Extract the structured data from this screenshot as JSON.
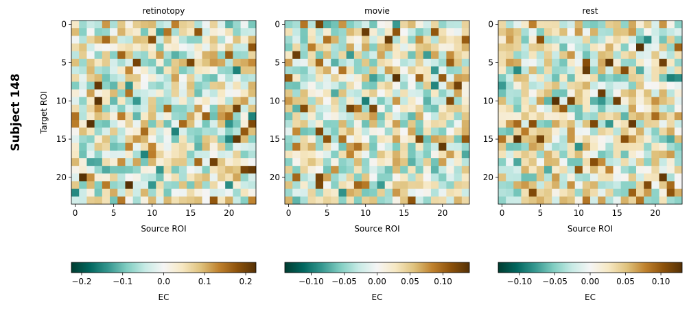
{
  "figure": {
    "suptitle": "Subject 148"
  },
  "chart_data": [
    {
      "type": "heatmap",
      "title": "retinotopy",
      "xlabel": "Source ROI",
      "ylabel": "Target ROI",
      "size": 24,
      "xticks": [
        0,
        5,
        10,
        15,
        20
      ],
      "yticks": [
        0,
        5,
        10,
        15,
        20
      ],
      "colorbar": {
        "label": "EC",
        "range": [
          -0.225,
          0.225
        ],
        "ticks": [
          -0.2,
          -0.1,
          0.0,
          0.1,
          0.2
        ],
        "tick_labels": [
          "−0.2",
          "−0.1",
          "0.0",
          "0.1",
          "0.2"
        ]
      },
      "seed": 148
    },
    {
      "type": "heatmap",
      "title": "movie",
      "xlabel": "Source ROI",
      "ylabel": "",
      "size": 24,
      "xticks": [
        0,
        5,
        10,
        15,
        20
      ],
      "yticks": [
        0,
        5,
        10,
        15,
        20
      ],
      "colorbar": {
        "label": "EC",
        "range": [
          -0.14,
          0.14
        ],
        "ticks": [
          -0.1,
          -0.05,
          0.0,
          0.05,
          0.1
        ],
        "tick_labels": [
          "−0.10",
          "−0.05",
          "0.00",
          "0.05",
          "0.10"
        ]
      },
      "seed": 2148
    },
    {
      "type": "heatmap",
      "title": "rest",
      "xlabel": "Source ROI",
      "ylabel": "",
      "size": 24,
      "xticks": [
        0,
        5,
        10,
        15,
        20
      ],
      "yticks": [
        0,
        5,
        10,
        15,
        20
      ],
      "colorbar": {
        "label": "EC",
        "range": [
          -0.13,
          0.13
        ],
        "ticks": [
          -0.1,
          -0.05,
          0.0,
          0.05,
          0.1
        ],
        "tick_labels": [
          "−0.10",
          "−0.05",
          "0.00",
          "0.05",
          "0.10"
        ]
      },
      "seed": 3148
    }
  ]
}
